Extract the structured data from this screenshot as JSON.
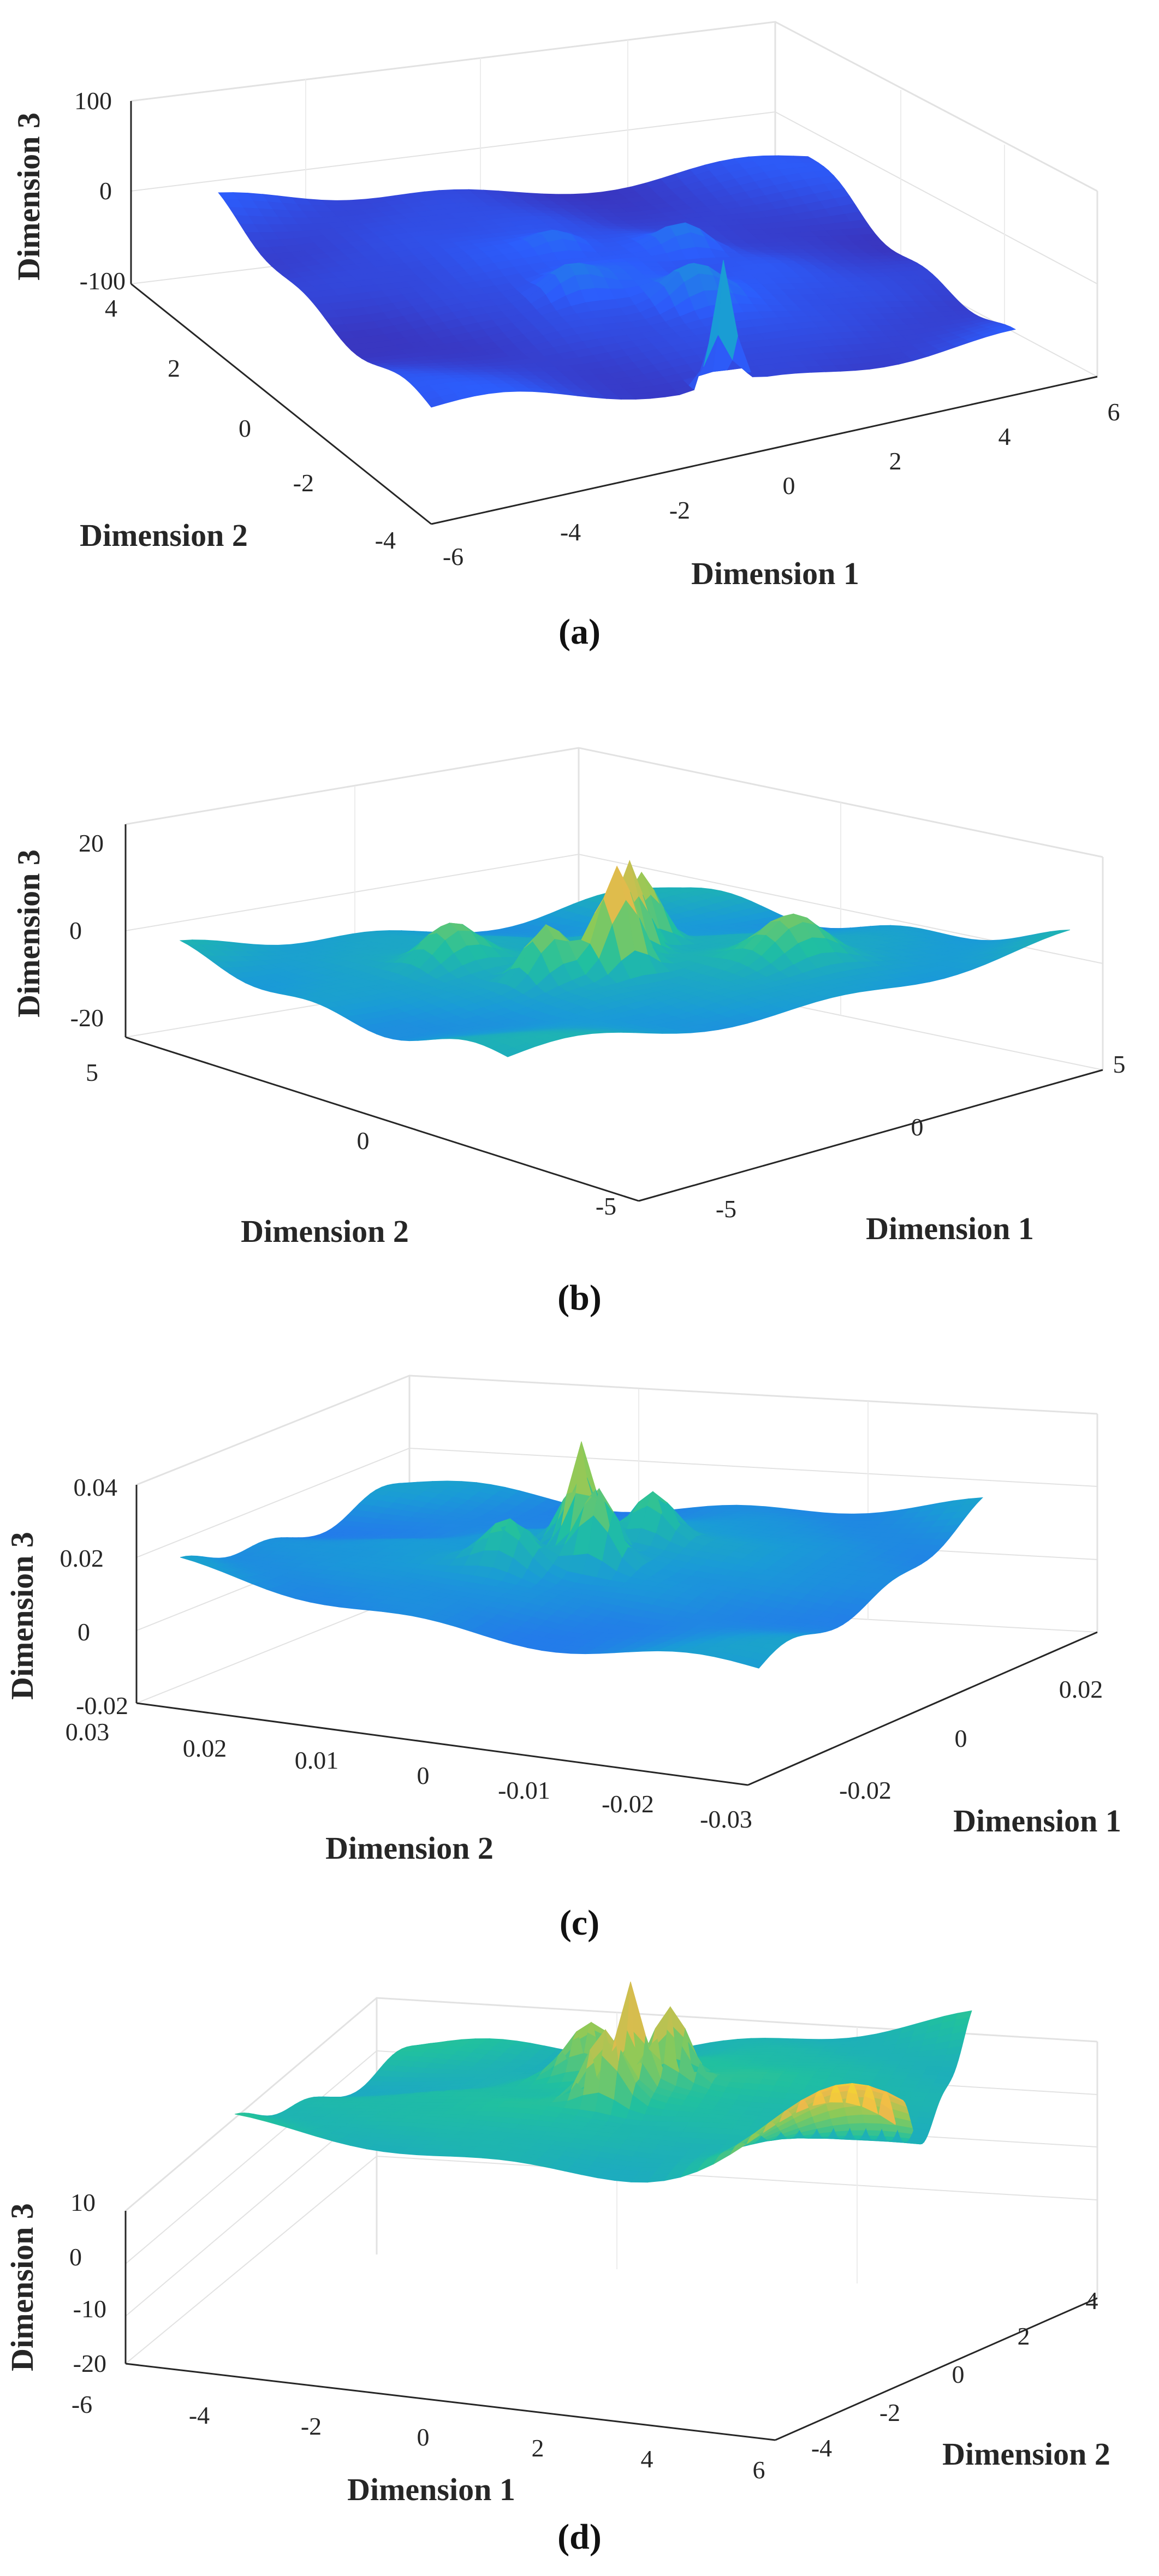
{
  "figure": {
    "captions": [
      "(a)",
      "(b)",
      "(c)",
      "(d)"
    ]
  },
  "colors": {
    "grid": "#e2e2e2",
    "axis": "#262626",
    "colormap": [
      "#3e26a8",
      "#2c5dfc",
      "#1a9bd7",
      "#20c0a0",
      "#8cca58",
      "#f0b94a",
      "#f9fb15"
    ]
  },
  "chart_data": [
    {
      "id": "a",
      "type": "surface",
      "xlabel": "Dimension 1",
      "ylabel": "Dimension 2",
      "zlabel": "Dimension 3",
      "x_ticks": [
        "-6",
        "-4",
        "-2",
        "0",
        "2",
        "4",
        "6"
      ],
      "y_ticks": [
        "-4",
        "-2",
        "0",
        "2",
        "4"
      ],
      "z_ticks": [
        "-100",
        "0",
        "100"
      ],
      "xlim": [
        -6,
        6
      ],
      "ylim": [
        -4,
        4
      ],
      "zlim": [
        -100,
        100
      ],
      "colormap_range": [
        0.05,
        0.55
      ],
      "surface_base": 0.15,
      "peaks": [
        [
          0.0,
          1.0,
          1.0,
          0.035
        ],
        [
          0.15,
          0.3,
          0.25,
          0.08
        ],
        [
          -0.2,
          0.1,
          0.2,
          0.08
        ],
        [
          0.3,
          -0.2,
          0.18,
          0.07
        ],
        [
          -0.1,
          -0.3,
          0.15,
          0.07
        ]
      ]
    },
    {
      "id": "b",
      "type": "surface",
      "xlabel": "Dimension 1",
      "ylabel": "Dimension 2",
      "zlabel": "Dimension 3",
      "x_ticks": [
        "-5",
        "0",
        "5"
      ],
      "y_ticks": [
        "-5",
        "0",
        "5"
      ],
      "z_ticks": [
        "-20",
        "0",
        "20"
      ],
      "xlim": [
        -5,
        5
      ],
      "ylim": [
        -5,
        5
      ],
      "zlim": [
        -20,
        20
      ],
      "colormap_range": [
        0.3,
        0.9
      ],
      "surface_base": 0.35,
      "peaks": [
        [
          -0.1,
          0.2,
          0.8,
          0.06
        ],
        [
          0.05,
          0.05,
          0.7,
          0.05
        ],
        [
          0.2,
          -0.1,
          0.55,
          0.06
        ],
        [
          -0.3,
          0.1,
          0.45,
          0.07
        ],
        [
          0.35,
          0.5,
          0.35,
          0.1
        ],
        [
          -0.4,
          -0.3,
          0.3,
          0.09
        ]
      ]
    },
    {
      "id": "c",
      "type": "surface",
      "xlabel": "Dimension 1",
      "ylabel": "Dimension 2",
      "zlabel": "Dimension 3",
      "x_ticks": [
        "-0.02",
        "0",
        "0.02"
      ],
      "y_ticks": [
        "-0.03",
        "-0.02",
        "-0.01",
        "0",
        "0.01",
        "0.02",
        "0.03"
      ],
      "z_ticks": [
        "-0.02",
        "0",
        "0.02",
        "0.04"
      ],
      "xlim": [
        -0.02,
        0.02
      ],
      "ylim": [
        -0.03,
        0.03
      ],
      "zlim": [
        -0.02,
        0.04
      ],
      "colormap_range": [
        0.25,
        0.75
      ],
      "surface_base": 0.4,
      "peaks": [
        [
          0.0,
          0.0,
          0.75,
          0.04
        ],
        [
          -0.1,
          0.1,
          0.55,
          0.06
        ],
        [
          0.12,
          -0.05,
          0.5,
          0.06
        ],
        [
          0.25,
          0.15,
          0.4,
          0.07
        ],
        [
          -0.25,
          -0.15,
          0.35,
          0.08
        ]
      ]
    },
    {
      "id": "d",
      "type": "surface",
      "xlabel": "Dimension 1",
      "ylabel": "Dimension 2",
      "zlabel": "Dimension 3",
      "x_ticks": [
        "-6",
        "-4",
        "-2",
        "0",
        "2",
        "4",
        "6"
      ],
      "y_ticks": [
        "-4",
        "-2",
        "0",
        "2",
        "4"
      ],
      "z_ticks": [
        "-20",
        "-10",
        "0",
        "10"
      ],
      "xlim": [
        -6,
        6
      ],
      "ylim": [
        -4,
        4
      ],
      "zlim": [
        -20,
        10
      ],
      "colormap_range": [
        0.4,
        0.9
      ],
      "surface_base": 0.5,
      "peaks": [
        [
          0.0,
          0.0,
          0.8,
          0.04
        ],
        [
          0.15,
          0.1,
          0.6,
          0.06
        ],
        [
          -0.15,
          -0.05,
          0.55,
          0.06
        ],
        [
          -0.9,
          0.85,
          0.7,
          0.25
        ],
        [
          0.3,
          -0.2,
          0.4,
          0.08
        ]
      ]
    }
  ]
}
